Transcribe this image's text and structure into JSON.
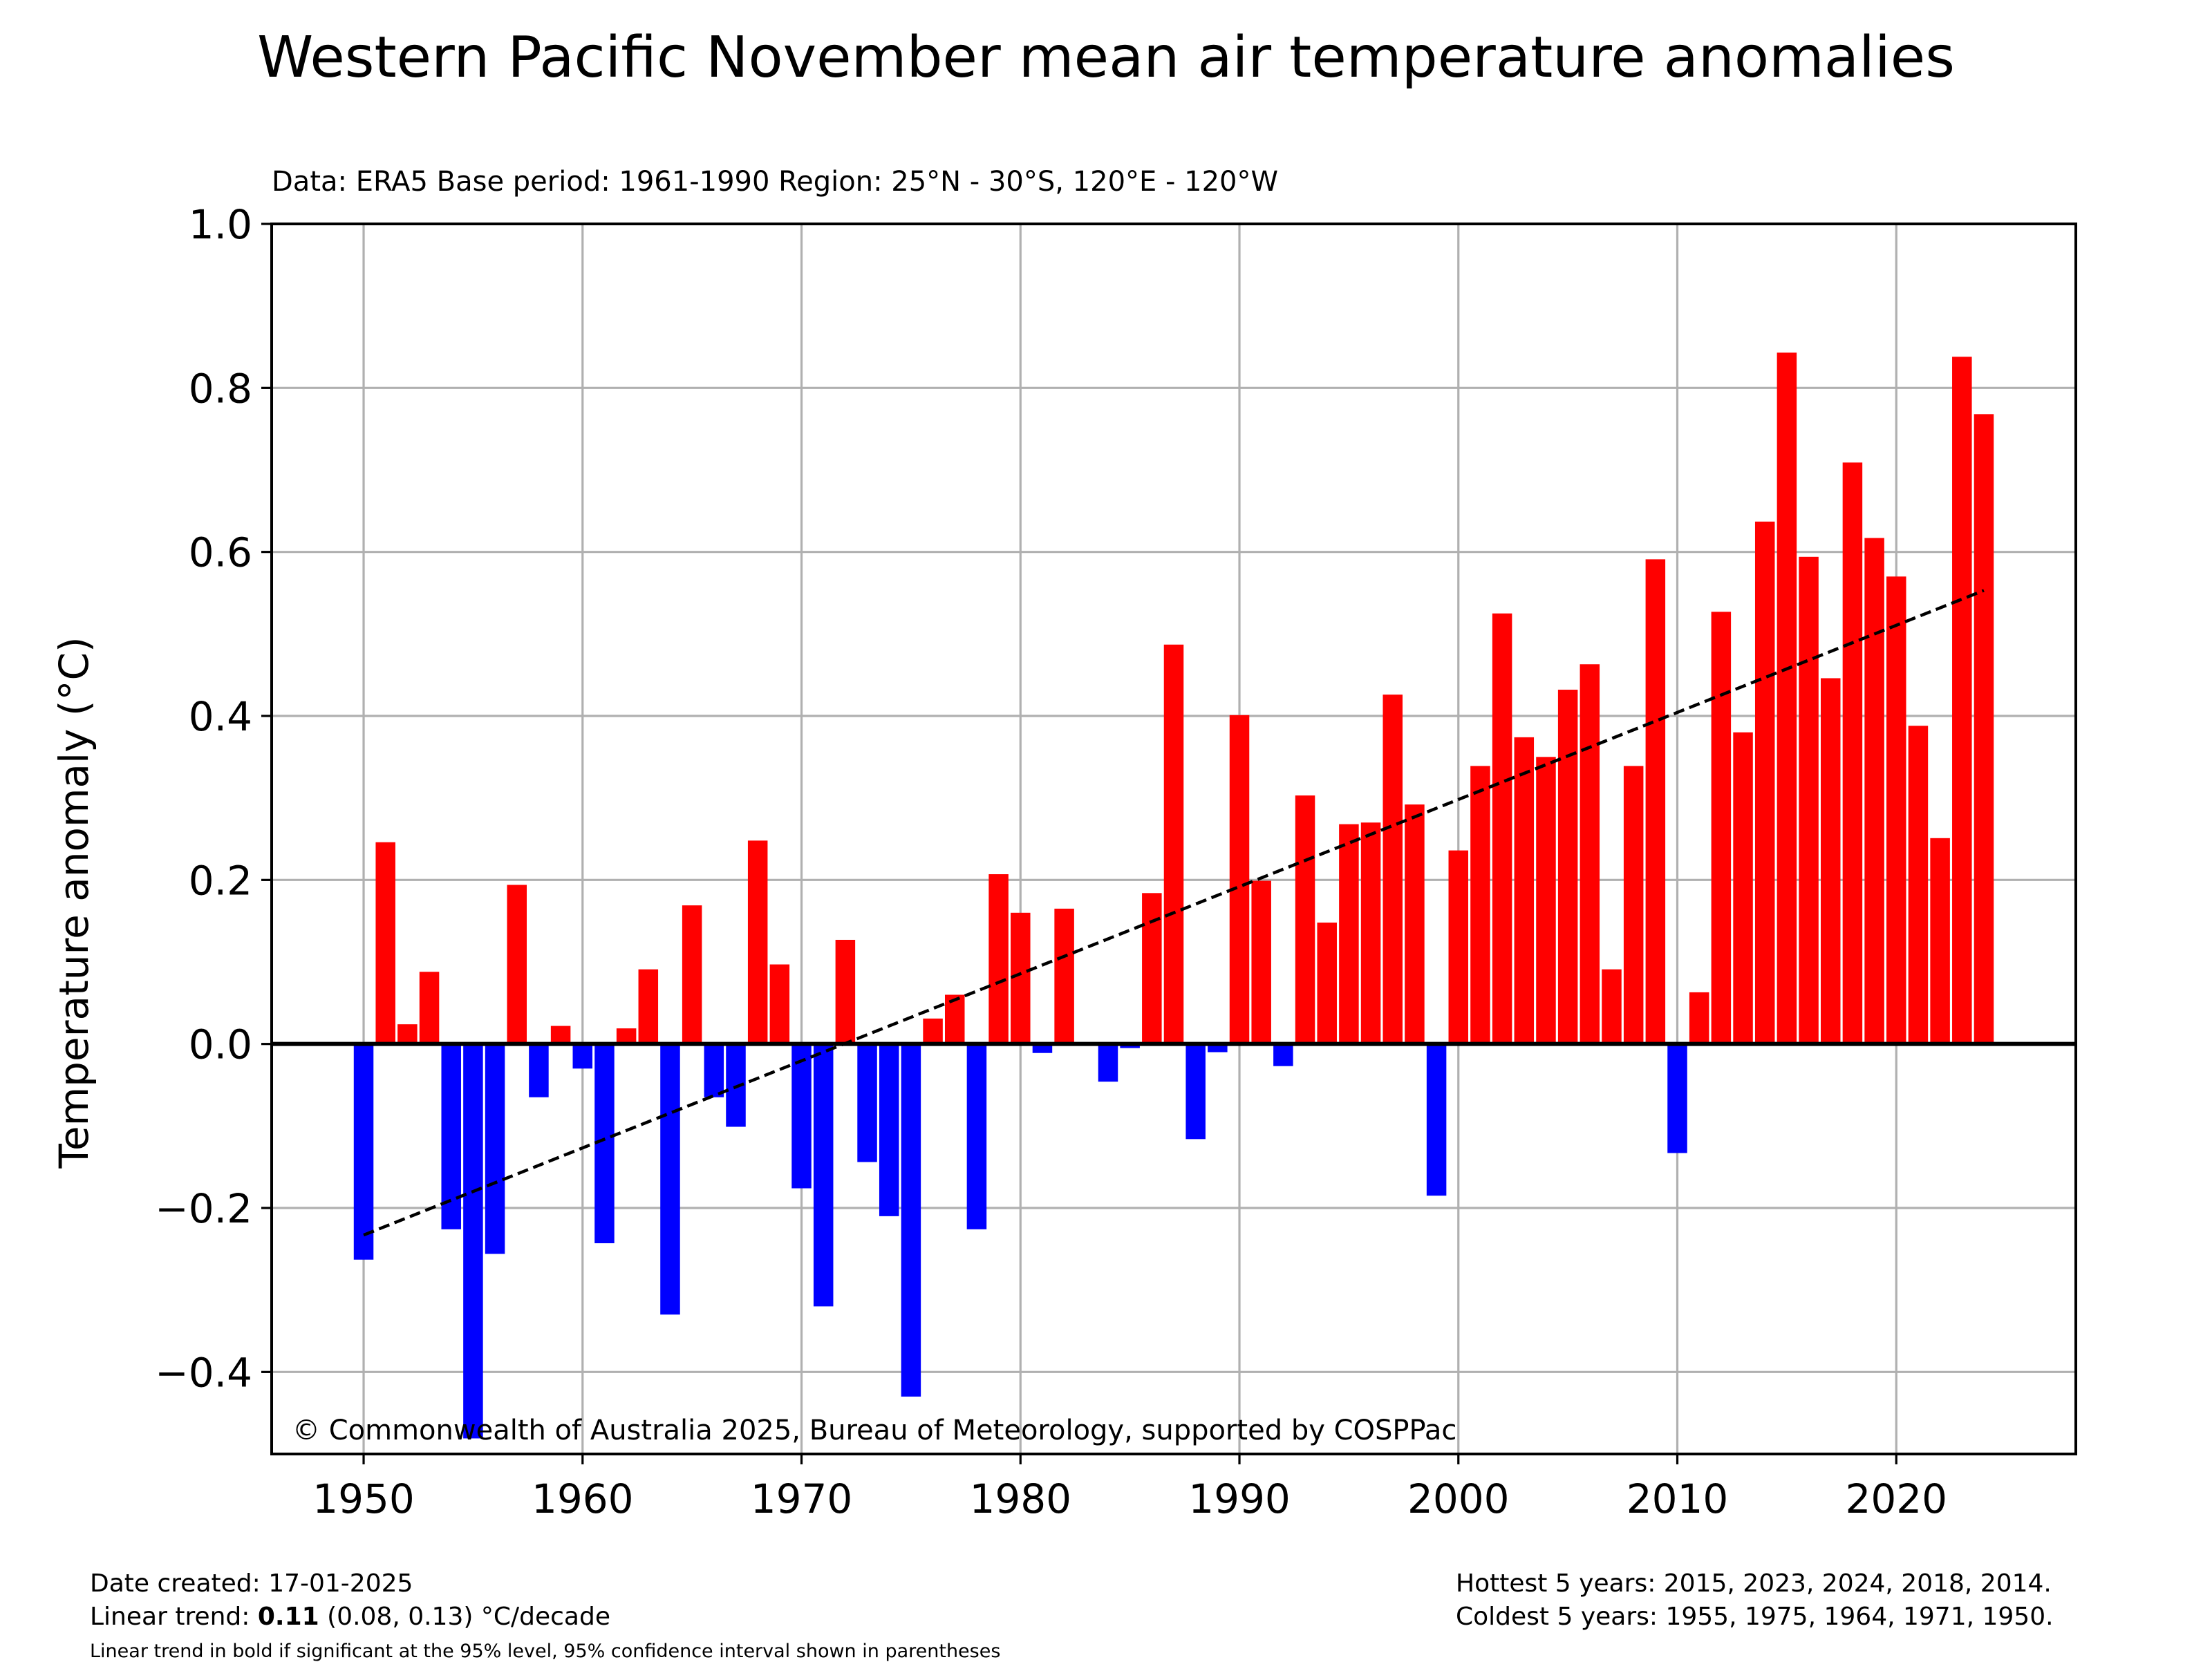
{
  "chart_data": {
    "type": "bar",
    "title": "Western Pacific November mean air temperature anomalies",
    "subtitle": "Data: ERA5  Base period: 1961-1990  Region: 25°N - 30°S, 120°E - 120°W",
    "ylabel": "Temperature anomaly (°C)",
    "xlabel": "",
    "xlim": [
      1945.8,
      2028.2
    ],
    "ylim": [
      -0.5,
      1.0
    ],
    "xticks": [
      1950,
      1960,
      1970,
      1980,
      1990,
      2000,
      2010,
      2020
    ],
    "yticks": [
      -0.4,
      -0.2,
      0.0,
      0.2,
      0.4,
      0.6,
      0.8,
      1.0
    ],
    "ytick_labels": [
      "−0.4",
      "−0.2",
      "0.0",
      "0.2",
      "0.4",
      "0.6",
      "0.8",
      "1.0"
    ],
    "grid": true,
    "positive_color": "#ff0000",
    "negative_color": "#0000ff",
    "years": [
      1950,
      1951,
      1952,
      1953,
      1954,
      1955,
      1956,
      1957,
      1958,
      1959,
      1960,
      1961,
      1962,
      1963,
      1964,
      1965,
      1966,
      1967,
      1968,
      1969,
      1970,
      1971,
      1972,
      1973,
      1974,
      1975,
      1976,
      1977,
      1978,
      1979,
      1980,
      1981,
      1982,
      1983,
      1984,
      1985,
      1986,
      1987,
      1988,
      1989,
      1990,
      1991,
      1992,
      1993,
      1994,
      1995,
      1996,
      1997,
      1998,
      1999,
      2000,
      2001,
      2002,
      2003,
      2004,
      2005,
      2006,
      2007,
      2008,
      2009,
      2010,
      2011,
      2012,
      2013,
      2014,
      2015,
      2016,
      2017,
      2018,
      2019,
      2020,
      2021,
      2022,
      2023,
      2024
    ],
    "values": [
      -0.263,
      0.246,
      0.024,
      0.088,
      -0.226,
      -0.481,
      -0.256,
      0.194,
      -0.065,
      0.022,
      -0.03,
      -0.243,
      0.019,
      0.091,
      -0.33,
      0.169,
      -0.065,
      -0.101,
      0.248,
      0.097,
      -0.176,
      -0.32,
      0.127,
      -0.144,
      -0.21,
      -0.43,
      0.031,
      0.06,
      -0.226,
      0.207,
      0.16,
      -0.011,
      0.165,
      0.0,
      -0.046,
      -0.005,
      0.184,
      0.487,
      -0.116,
      -0.01,
      0.401,
      0.199,
      -0.027,
      0.303,
      0.148,
      0.268,
      0.27,
      0.426,
      0.292,
      -0.185,
      0.236,
      0.339,
      0.525,
      0.374,
      0.35,
      0.432,
      0.463,
      0.091,
      0.339,
      0.591,
      -0.133,
      0.063,
      0.527,
      0.38,
      0.637,
      0.843,
      0.594,
      0.446,
      0.709,
      0.617,
      0.57,
      0.388,
      0.251,
      0.838,
      0.768
    ],
    "trend_line": {
      "x": [
        1950,
        2024
      ],
      "y": [
        -0.233,
        0.553
      ],
      "style": "dashed",
      "color": "#000000"
    },
    "annotation": "© Commonwealth of Australia 2025, Bureau of Meteorology, supported by COSPPac"
  },
  "footer": {
    "date_created": "Date created: 17-01-2025",
    "trend_prefix": "Linear trend: ",
    "trend_value": "0.11",
    "trend_suffix": " (0.08, 0.13) °C/decade",
    "trend_note": "Linear trend in bold if significant at the 95% level, 95% confidence interval shown in parentheses",
    "hottest": "Hottest 5 years: 2015, 2023, 2024, 2018, 2014.",
    "coldest": "Coldest 5 years: 1955, 1975, 1964, 1971, 1950."
  }
}
